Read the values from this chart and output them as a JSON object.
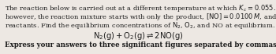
{
  "bg_color": "#ede8e3",
  "text_color": "#1a1a1a",
  "line1": "The reaction below is carried out at a different temperature at which $K_c = 0.055$. This time,",
  "line2": "however, the reaction mixture starts with only the product, $[\\mathrm{NO}] = 0.0100\\,M$, and no",
  "line3": "reactants. Find the equilibrium concentrations of $\\mathrm{N_2}$, $\\mathrm{O_2}$, and NO at equilibrium.",
  "equation": "$\\mathrm{N_2(g) + O_2(g) \\rightleftharpoons 2NO(g)}$",
  "footer": "Express your answers to three significant figures separated by commas.",
  "body_fontsize": 6.0,
  "eq_fontsize": 7.2,
  "footer_fontsize": 6.2
}
